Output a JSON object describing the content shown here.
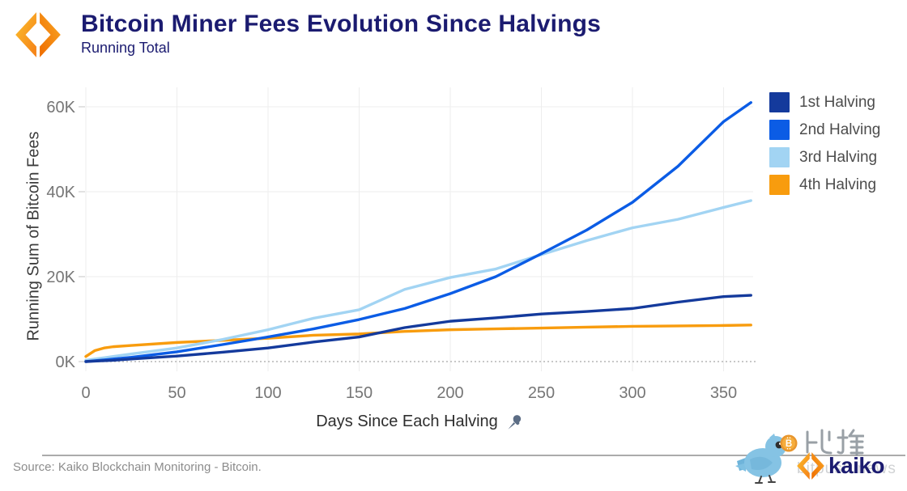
{
  "header": {
    "title": "Bitcoin Miner Fees Evolution Since Halvings",
    "subtitle": "Running Total",
    "logo": "kaiko-diamond-logo"
  },
  "chart_data": {
    "type": "line",
    "title": "Bitcoin Miner Fees Evolution Since Halvings",
    "subtitle": "Running Total",
    "xlabel": "Days Since Each Halving",
    "ylabel": "Running Sum of Bitcoin Fees",
    "xlim": [
      0,
      365
    ],
    "ylim": [
      0,
      63
    ],
    "grid": true,
    "legend_position": "top-right",
    "zero_line_dashed": true,
    "x_ticks": [
      0,
      50,
      100,
      150,
      200,
      250,
      300,
      350
    ],
    "y_ticks": [
      {
        "value": 0,
        "label": "0K"
      },
      {
        "value": 20,
        "label": "20K"
      },
      {
        "value": 40,
        "label": "40K"
      },
      {
        "value": 60,
        "label": "60K"
      }
    ],
    "x": [
      0,
      5,
      10,
      15,
      25,
      50,
      75,
      100,
      125,
      150,
      175,
      200,
      225,
      250,
      275,
      300,
      325,
      350,
      365
    ],
    "series": [
      {
        "name": "1st Halving",
        "color": "#143a9c",
        "values": [
          0,
          0.1,
          0.2,
          0.3,
          0.6,
          1.3,
          2.2,
          3.2,
          4.6,
          5.8,
          8.0,
          9.5,
          10.3,
          11.2,
          11.8,
          12.5,
          14.0,
          15.3,
          15.6
        ]
      },
      {
        "name": "2nd Halving",
        "color": "#0b5ce5",
        "values": [
          0,
          0.2,
          0.4,
          0.6,
          1.0,
          2.3,
          4.0,
          5.8,
          7.7,
          9.9,
          12.5,
          16.0,
          20.0,
          25.4,
          31.0,
          37.5,
          46.0,
          56.5,
          61.0
        ]
      },
      {
        "name": "3rd Halving",
        "color": "#a2d4f3",
        "values": [
          0.3,
          0.6,
          0.9,
          1.2,
          1.8,
          3.2,
          5.2,
          7.5,
          10.2,
          12.2,
          17.0,
          19.8,
          21.8,
          25.2,
          28.5,
          31.5,
          33.5,
          36.3,
          37.9
        ]
      },
      {
        "name": "4th Halving",
        "color": "#f89c0e",
        "values": [
          1.2,
          2.6,
          3.2,
          3.5,
          3.8,
          4.5,
          5.0,
          5.5,
          6.2,
          6.5,
          7.1,
          7.5,
          7.7,
          7.9,
          8.1,
          8.3,
          8.4,
          8.5,
          8.6
        ]
      }
    ]
  },
  "footer": {
    "source": "Source: Kaiko Blockchain Monitoring - Bitcoin."
  },
  "watermark": {
    "brand_cn": "比推",
    "site": "bitpush.news",
    "brand": "kaiko",
    "coin_symbol": "B"
  },
  "colors": {
    "title": "#1b1b70",
    "axis_text": "#767676",
    "axis_title": "#3d3d3d",
    "grid": "#ededed",
    "zero_line": "#b5b5b5",
    "legend_text": "#4d4d4d",
    "pin_icon": "#5c6d85",
    "logo_orange_light": "#fbc02d",
    "logo_orange_dark": "#f57f17"
  }
}
